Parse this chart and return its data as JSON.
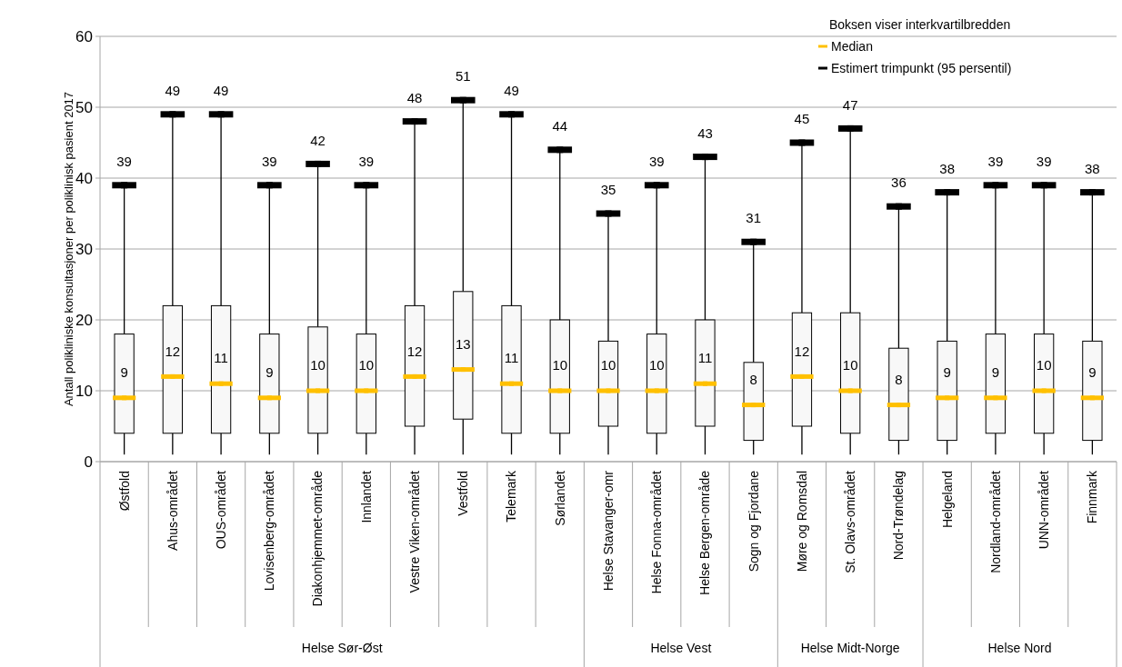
{
  "chart_data": {
    "type": "box",
    "ylabel": "Antall polikliniske konsultasjoner per poliklinisk pasient 2017",
    "legend_title": "Boksen viser interkvartilbredden",
    "legend": "top right",
    "grid": "y",
    "data_labels": true,
    "categories": [
      "Østfold",
      "Ahus-området",
      "OUS-området",
      "Lovisenberg-området",
      "Diakonhjemmet-område",
      "Innlandet",
      "Vestre Viken-området",
      "Vestfold",
      "Telemark",
      "Sørlandet",
      "Helse Stavanger-omr",
      "Helse Fonna-området",
      "Helse Bergen-område",
      "Sogn og Fjordane",
      "Møre og Romsdal",
      "St. Olavs-området",
      "Nord-Trøndelag",
      "Helgeland",
      "Nordland-området",
      "UNN-området",
      "Finnmark"
    ],
    "ylim": [
      0,
      60
    ],
    "yticks": [
      0,
      10,
      20,
      30,
      40,
      50,
      60
    ],
    "annotations": [
      "Helse Sør-Øst",
      "Helse Vest",
      "Helse Midt-Norge",
      "Helse Nord"
    ],
    "series": [
      {
        "color": "#f8f8f8",
        "boxes": [
          {
            "low": 1,
            "q1": 4,
            "median": 9,
            "q3": 18,
            "high": 39
          },
          {
            "low": 1,
            "q1": 4,
            "median": 12,
            "q3": 22,
            "high": 49
          },
          {
            "low": 1,
            "q1": 4,
            "median": 11,
            "q3": 22,
            "high": 49
          },
          {
            "low": 1,
            "q1": 4,
            "median": 9,
            "q3": 18,
            "high": 39
          },
          {
            "low": 1,
            "q1": 4,
            "median": 10,
            "q3": 19,
            "high": 42
          },
          {
            "low": 1,
            "q1": 4,
            "median": 10,
            "q3": 18,
            "high": 39
          },
          {
            "low": 1,
            "q1": 5,
            "median": 12,
            "q3": 22,
            "high": 48
          },
          {
            "low": 1,
            "q1": 6,
            "median": 13,
            "q3": 24,
            "high": 51
          },
          {
            "low": 1,
            "q1": 4,
            "median": 11,
            "q3": 22,
            "high": 49
          },
          {
            "low": 1,
            "q1": 4,
            "median": 10,
            "q3": 20,
            "high": 44
          },
          {
            "low": 1,
            "q1": 5,
            "median": 10,
            "q3": 17,
            "high": 35
          },
          {
            "low": 1,
            "q1": 4,
            "median": 10,
            "q3": 18,
            "high": 39
          },
          {
            "low": 1,
            "q1": 5,
            "median": 11,
            "q3": 20,
            "high": 43
          },
          {
            "low": 1,
            "q1": 3,
            "median": 8,
            "q3": 14,
            "high": 31
          },
          {
            "low": 1,
            "q1": 5,
            "median": 12,
            "q3": 21,
            "high": 45
          },
          {
            "low": 1,
            "q1": 4,
            "median": 10,
            "q3": 21,
            "high": 47
          },
          {
            "low": 1,
            "q1": 3,
            "median": 8,
            "q3": 16,
            "high": 36
          },
          {
            "low": 1,
            "q1": 3,
            "median": 9,
            "q3": 17,
            "high": 38
          },
          {
            "low": 1,
            "q1": 4,
            "median": 9,
            "q3": 18,
            "high": 39
          },
          {
            "low": 1,
            "q1": 4,
            "median": 10,
            "q3": 18,
            "high": 39
          },
          {
            "low": 1,
            "q1": 3,
            "median": 9,
            "q3": 17,
            "high": 38
          }
        ]
      },
      {
        "type": "scatter",
        "name": "Median",
        "color": "#ffc000",
        "marker": "square",
        "values": [
          9,
          12,
          11,
          9,
          10,
          10,
          12,
          13,
          11,
          10,
          10,
          10,
          11,
          8,
          12,
          10,
          8,
          9,
          9,
          10,
          9
        ]
      },
      {
        "type": "scatter",
        "name": "Estimert trimpunkt (95 persentil)",
        "color": "#000000",
        "marker": "square",
        "values": [
          39,
          49,
          49,
          39,
          42,
          39,
          48,
          51,
          49,
          44,
          35,
          39,
          43,
          31,
          45,
          47,
          36,
          38,
          39,
          39,
          38
        ]
      }
    ]
  }
}
